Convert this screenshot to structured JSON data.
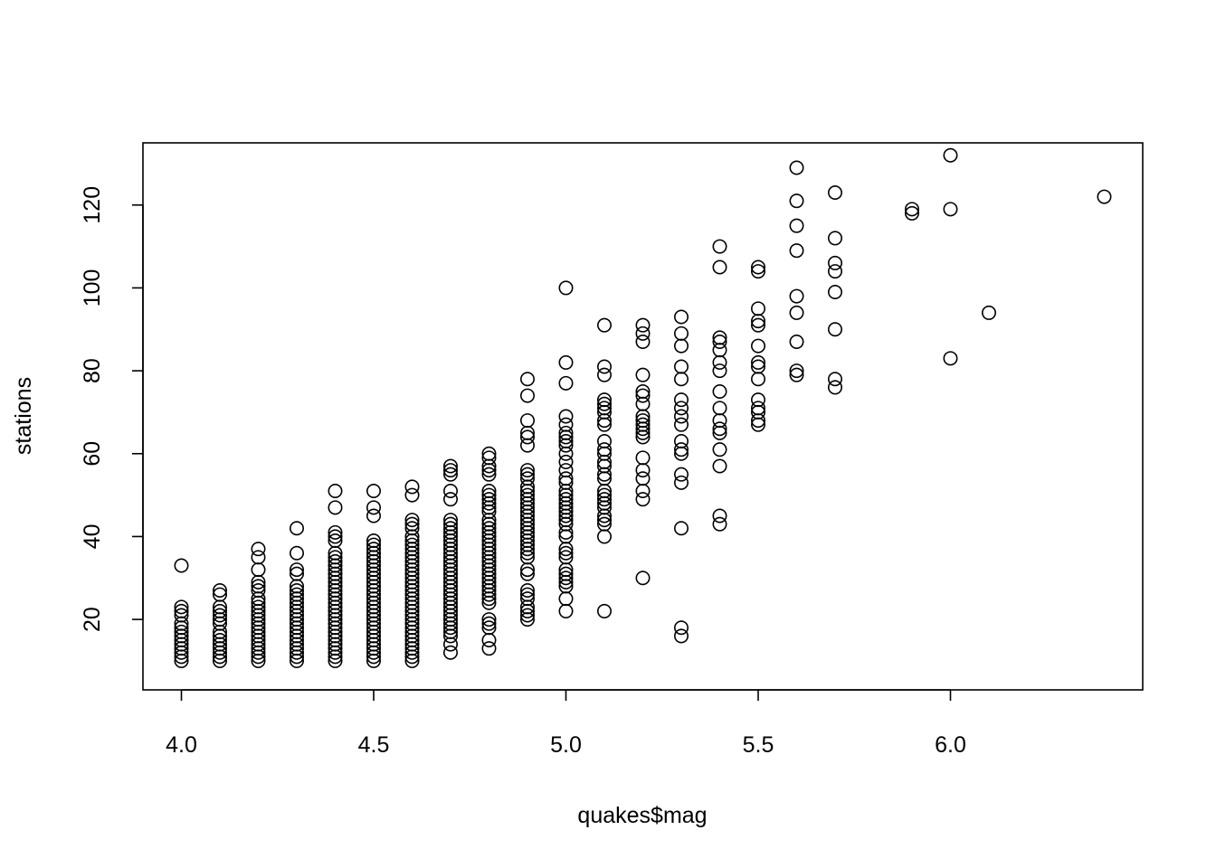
{
  "chart_data": {
    "type": "scatter",
    "title": "",
    "xlabel": "quakes$mag",
    "ylabel": "stations",
    "xlim": [
      3.9,
      6.5
    ],
    "ylim": [
      3,
      135
    ],
    "xticks": [
      4.0,
      4.5,
      5.0,
      5.5,
      6.0
    ],
    "yticks": [
      20,
      40,
      60,
      80,
      100,
      120
    ],
    "xtick_labels": [
      "4.0",
      "4.5",
      "5.0",
      "5.5",
      "6.0"
    ],
    "ytick_labels": [
      "20",
      "40",
      "60",
      "80",
      "100",
      "120"
    ],
    "grid": false,
    "marker": "open-circle",
    "color": "#000000",
    "points": [
      [
        4.0,
        33
      ],
      [
        4.0,
        23
      ],
      [
        4.0,
        22
      ],
      [
        4.0,
        21
      ],
      [
        4.0,
        19
      ],
      [
        4.0,
        18
      ],
      [
        4.0,
        17
      ],
      [
        4.0,
        16
      ],
      [
        4.0,
        15
      ],
      [
        4.0,
        14
      ],
      [
        4.0,
        13
      ],
      [
        4.0,
        12
      ],
      [
        4.0,
        11
      ],
      [
        4.0,
        10
      ],
      [
        4.1,
        27
      ],
      [
        4.1,
        26
      ],
      [
        4.1,
        23
      ],
      [
        4.1,
        22
      ],
      [
        4.1,
        21
      ],
      [
        4.1,
        20
      ],
      [
        4.1,
        19
      ],
      [
        4.1,
        17
      ],
      [
        4.1,
        16
      ],
      [
        4.1,
        15
      ],
      [
        4.1,
        14
      ],
      [
        4.1,
        13
      ],
      [
        4.1,
        12
      ],
      [
        4.1,
        11
      ],
      [
        4.1,
        10
      ],
      [
        4.2,
        37
      ],
      [
        4.2,
        35
      ],
      [
        4.2,
        32
      ],
      [
        4.2,
        29
      ],
      [
        4.2,
        28
      ],
      [
        4.2,
        27
      ],
      [
        4.2,
        25
      ],
      [
        4.2,
        24
      ],
      [
        4.2,
        23
      ],
      [
        4.2,
        22
      ],
      [
        4.2,
        21
      ],
      [
        4.2,
        20
      ],
      [
        4.2,
        19
      ],
      [
        4.2,
        18
      ],
      [
        4.2,
        17
      ],
      [
        4.2,
        16
      ],
      [
        4.2,
        15
      ],
      [
        4.2,
        14
      ],
      [
        4.2,
        13
      ],
      [
        4.2,
        12
      ],
      [
        4.2,
        11
      ],
      [
        4.2,
        10
      ],
      [
        4.3,
        42
      ],
      [
        4.3,
        36
      ],
      [
        4.3,
        32
      ],
      [
        4.3,
        31
      ],
      [
        4.3,
        28
      ],
      [
        4.3,
        27
      ],
      [
        4.3,
        26
      ],
      [
        4.3,
        25
      ],
      [
        4.3,
        24
      ],
      [
        4.3,
        23
      ],
      [
        4.3,
        22
      ],
      [
        4.3,
        21
      ],
      [
        4.3,
        20
      ],
      [
        4.3,
        19
      ],
      [
        4.3,
        18
      ],
      [
        4.3,
        17
      ],
      [
        4.3,
        16
      ],
      [
        4.3,
        15
      ],
      [
        4.3,
        14
      ],
      [
        4.3,
        13
      ],
      [
        4.3,
        12
      ],
      [
        4.3,
        11
      ],
      [
        4.3,
        10
      ],
      [
        4.4,
        51
      ],
      [
        4.4,
        47
      ],
      [
        4.4,
        41
      ],
      [
        4.4,
        40
      ],
      [
        4.4,
        39
      ],
      [
        4.4,
        36
      ],
      [
        4.4,
        35
      ],
      [
        4.4,
        34
      ],
      [
        4.4,
        33
      ],
      [
        4.4,
        32
      ],
      [
        4.4,
        31
      ],
      [
        4.4,
        30
      ],
      [
        4.4,
        29
      ],
      [
        4.4,
        28
      ],
      [
        4.4,
        27
      ],
      [
        4.4,
        26
      ],
      [
        4.4,
        25
      ],
      [
        4.4,
        24
      ],
      [
        4.4,
        23
      ],
      [
        4.4,
        22
      ],
      [
        4.4,
        21
      ],
      [
        4.4,
        20
      ],
      [
        4.4,
        19
      ],
      [
        4.4,
        18
      ],
      [
        4.4,
        17
      ],
      [
        4.4,
        16
      ],
      [
        4.4,
        15
      ],
      [
        4.4,
        14
      ],
      [
        4.4,
        13
      ],
      [
        4.4,
        12
      ],
      [
        4.4,
        11
      ],
      [
        4.4,
        10
      ],
      [
        4.5,
        51
      ],
      [
        4.5,
        47
      ],
      [
        4.5,
        45
      ],
      [
        4.5,
        39
      ],
      [
        4.5,
        38
      ],
      [
        4.5,
        37
      ],
      [
        4.5,
        36
      ],
      [
        4.5,
        35
      ],
      [
        4.5,
        34
      ],
      [
        4.5,
        33
      ],
      [
        4.5,
        32
      ],
      [
        4.5,
        31
      ],
      [
        4.5,
        30
      ],
      [
        4.5,
        29
      ],
      [
        4.5,
        28
      ],
      [
        4.5,
        27
      ],
      [
        4.5,
        26
      ],
      [
        4.5,
        25
      ],
      [
        4.5,
        24
      ],
      [
        4.5,
        23
      ],
      [
        4.5,
        22
      ],
      [
        4.5,
        21
      ],
      [
        4.5,
        20
      ],
      [
        4.5,
        19
      ],
      [
        4.5,
        18
      ],
      [
        4.5,
        17
      ],
      [
        4.5,
        16
      ],
      [
        4.5,
        15
      ],
      [
        4.5,
        14
      ],
      [
        4.5,
        13
      ],
      [
        4.5,
        12
      ],
      [
        4.5,
        11
      ],
      [
        4.5,
        10
      ],
      [
        4.6,
        52
      ],
      [
        4.6,
        50
      ],
      [
        4.6,
        44
      ],
      [
        4.6,
        43
      ],
      [
        4.6,
        42
      ],
      [
        4.6,
        40
      ],
      [
        4.6,
        39
      ],
      [
        4.6,
        38
      ],
      [
        4.6,
        37
      ],
      [
        4.6,
        36
      ],
      [
        4.6,
        35
      ],
      [
        4.6,
        34
      ],
      [
        4.6,
        33
      ],
      [
        4.6,
        32
      ],
      [
        4.6,
        31
      ],
      [
        4.6,
        30
      ],
      [
        4.6,
        29
      ],
      [
        4.6,
        28
      ],
      [
        4.6,
        27
      ],
      [
        4.6,
        26
      ],
      [
        4.6,
        25
      ],
      [
        4.6,
        24
      ],
      [
        4.6,
        23
      ],
      [
        4.6,
        22
      ],
      [
        4.6,
        21
      ],
      [
        4.6,
        20
      ],
      [
        4.6,
        19
      ],
      [
        4.6,
        18
      ],
      [
        4.6,
        17
      ],
      [
        4.6,
        16
      ],
      [
        4.6,
        15
      ],
      [
        4.6,
        14
      ],
      [
        4.6,
        13
      ],
      [
        4.6,
        12
      ],
      [
        4.6,
        11
      ],
      [
        4.6,
        10
      ],
      [
        4.7,
        57
      ],
      [
        4.7,
        56
      ],
      [
        4.7,
        55
      ],
      [
        4.7,
        51
      ],
      [
        4.7,
        49
      ],
      [
        4.7,
        44
      ],
      [
        4.7,
        43
      ],
      [
        4.7,
        42
      ],
      [
        4.7,
        41
      ],
      [
        4.7,
        40
      ],
      [
        4.7,
        39
      ],
      [
        4.7,
        38
      ],
      [
        4.7,
        37
      ],
      [
        4.7,
        36
      ],
      [
        4.7,
        35
      ],
      [
        4.7,
        34
      ],
      [
        4.7,
        33
      ],
      [
        4.7,
        32
      ],
      [
        4.7,
        31
      ],
      [
        4.7,
        30
      ],
      [
        4.7,
        29
      ],
      [
        4.7,
        28
      ],
      [
        4.7,
        27
      ],
      [
        4.7,
        26
      ],
      [
        4.7,
        25
      ],
      [
        4.7,
        24
      ],
      [
        4.7,
        23
      ],
      [
        4.7,
        22
      ],
      [
        4.7,
        21
      ],
      [
        4.7,
        20
      ],
      [
        4.7,
        19
      ],
      [
        4.7,
        18
      ],
      [
        4.7,
        17
      ],
      [
        4.7,
        16
      ],
      [
        4.7,
        14
      ],
      [
        4.7,
        12
      ],
      [
        4.8,
        60
      ],
      [
        4.8,
        59
      ],
      [
        4.8,
        57
      ],
      [
        4.8,
        56
      ],
      [
        4.8,
        55
      ],
      [
        4.8,
        51
      ],
      [
        4.8,
        50
      ],
      [
        4.8,
        49
      ],
      [
        4.8,
        48
      ],
      [
        4.8,
        47
      ],
      [
        4.8,
        46
      ],
      [
        4.8,
        44
      ],
      [
        4.8,
        43
      ],
      [
        4.8,
        42
      ],
      [
        4.8,
        41
      ],
      [
        4.8,
        40
      ],
      [
        4.8,
        39
      ],
      [
        4.8,
        38
      ],
      [
        4.8,
        37
      ],
      [
        4.8,
        36
      ],
      [
        4.8,
        35
      ],
      [
        4.8,
        34
      ],
      [
        4.8,
        33
      ],
      [
        4.8,
        32
      ],
      [
        4.8,
        31
      ],
      [
        4.8,
        30
      ],
      [
        4.8,
        29
      ],
      [
        4.8,
        28
      ],
      [
        4.8,
        27
      ],
      [
        4.8,
        26
      ],
      [
        4.8,
        25
      ],
      [
        4.8,
        24
      ],
      [
        4.8,
        20
      ],
      [
        4.8,
        19
      ],
      [
        4.8,
        18
      ],
      [
        4.8,
        15
      ],
      [
        4.8,
        13
      ],
      [
        4.9,
        78
      ],
      [
        4.9,
        74
      ],
      [
        4.9,
        68
      ],
      [
        4.9,
        65
      ],
      [
        4.9,
        64
      ],
      [
        4.9,
        62
      ],
      [
        4.9,
        56
      ],
      [
        4.9,
        55
      ],
      [
        4.9,
        54
      ],
      [
        4.9,
        52
      ],
      [
        4.9,
        51
      ],
      [
        4.9,
        50
      ],
      [
        4.9,
        49
      ],
      [
        4.9,
        48
      ],
      [
        4.9,
        47
      ],
      [
        4.9,
        46
      ],
      [
        4.9,
        45
      ],
      [
        4.9,
        44
      ],
      [
        4.9,
        43
      ],
      [
        4.9,
        42
      ],
      [
        4.9,
        41
      ],
      [
        4.9,
        40
      ],
      [
        4.9,
        39
      ],
      [
        4.9,
        38
      ],
      [
        4.9,
        37
      ],
      [
        4.9,
        36
      ],
      [
        4.9,
        35
      ],
      [
        4.9,
        32
      ],
      [
        4.9,
        31
      ],
      [
        4.9,
        27
      ],
      [
        4.9,
        26
      ],
      [
        4.9,
        25
      ],
      [
        4.9,
        23
      ],
      [
        4.9,
        22
      ],
      [
        4.9,
        21
      ],
      [
        4.9,
        20
      ],
      [
        5.0,
        100
      ],
      [
        5.0,
        82
      ],
      [
        5.0,
        77
      ],
      [
        5.0,
        69
      ],
      [
        5.0,
        67
      ],
      [
        5.0,
        65
      ],
      [
        5.0,
        64
      ],
      [
        5.0,
        63
      ],
      [
        5.0,
        62
      ],
      [
        5.0,
        60
      ],
      [
        5.0,
        58
      ],
      [
        5.0,
        56
      ],
      [
        5.0,
        54
      ],
      [
        5.0,
        53
      ],
      [
        5.0,
        51
      ],
      [
        5.0,
        50
      ],
      [
        5.0,
        49
      ],
      [
        5.0,
        48
      ],
      [
        5.0,
        47
      ],
      [
        5.0,
        46
      ],
      [
        5.0,
        45
      ],
      [
        5.0,
        44
      ],
      [
        5.0,
        43
      ],
      [
        5.0,
        41
      ],
      [
        5.0,
        40
      ],
      [
        5.0,
        37
      ],
      [
        5.0,
        36
      ],
      [
        5.0,
        35
      ],
      [
        5.0,
        32
      ],
      [
        5.0,
        31
      ],
      [
        5.0,
        30
      ],
      [
        5.0,
        29
      ],
      [
        5.0,
        28
      ],
      [
        5.0,
        25
      ],
      [
        5.0,
        22
      ],
      [
        5.1,
        91
      ],
      [
        5.1,
        81
      ],
      [
        5.1,
        79
      ],
      [
        5.1,
        73
      ],
      [
        5.1,
        72
      ],
      [
        5.1,
        71
      ],
      [
        5.1,
        70
      ],
      [
        5.1,
        68
      ],
      [
        5.1,
        67
      ],
      [
        5.1,
        63
      ],
      [
        5.1,
        61
      ],
      [
        5.1,
        60
      ],
      [
        5.1,
        58
      ],
      [
        5.1,
        57
      ],
      [
        5.1,
        55
      ],
      [
        5.1,
        54
      ],
      [
        5.1,
        51
      ],
      [
        5.1,
        50
      ],
      [
        5.1,
        49
      ],
      [
        5.1,
        48
      ],
      [
        5.1,
        47
      ],
      [
        5.1,
        45
      ],
      [
        5.1,
        44
      ],
      [
        5.1,
        43
      ],
      [
        5.1,
        40
      ],
      [
        5.1,
        22
      ],
      [
        5.2,
        91
      ],
      [
        5.2,
        89
      ],
      [
        5.2,
        87
      ],
      [
        5.2,
        79
      ],
      [
        5.2,
        75
      ],
      [
        5.2,
        74
      ],
      [
        5.2,
        72
      ],
      [
        5.2,
        69
      ],
      [
        5.2,
        68
      ],
      [
        5.2,
        67
      ],
      [
        5.2,
        66
      ],
      [
        5.2,
        65
      ],
      [
        5.2,
        64
      ],
      [
        5.2,
        59
      ],
      [
        5.2,
        56
      ],
      [
        5.2,
        54
      ],
      [
        5.2,
        51
      ],
      [
        5.2,
        49
      ],
      [
        5.2,
        30
      ],
      [
        5.3,
        93
      ],
      [
        5.3,
        89
      ],
      [
        5.3,
        86
      ],
      [
        5.3,
        81
      ],
      [
        5.3,
        78
      ],
      [
        5.3,
        73
      ],
      [
        5.3,
        71
      ],
      [
        5.3,
        69
      ],
      [
        5.3,
        67
      ],
      [
        5.3,
        63
      ],
      [
        5.3,
        61
      ],
      [
        5.3,
        60
      ],
      [
        5.3,
        55
      ],
      [
        5.3,
        53
      ],
      [
        5.3,
        42
      ],
      [
        5.3,
        18
      ],
      [
        5.3,
        16
      ],
      [
        5.4,
        110
      ],
      [
        5.4,
        105
      ],
      [
        5.4,
        88
      ],
      [
        5.4,
        87
      ],
      [
        5.4,
        85
      ],
      [
        5.4,
        82
      ],
      [
        5.4,
        80
      ],
      [
        5.4,
        75
      ],
      [
        5.4,
        71
      ],
      [
        5.4,
        68
      ],
      [
        5.4,
        66
      ],
      [
        5.4,
        65
      ],
      [
        5.4,
        61
      ],
      [
        5.4,
        57
      ],
      [
        5.4,
        45
      ],
      [
        5.4,
        43
      ],
      [
        5.5,
        105
      ],
      [
        5.5,
        104
      ],
      [
        5.5,
        95
      ],
      [
        5.5,
        92
      ],
      [
        5.5,
        91
      ],
      [
        5.5,
        86
      ],
      [
        5.5,
        82
      ],
      [
        5.5,
        81
      ],
      [
        5.5,
        78
      ],
      [
        5.5,
        73
      ],
      [
        5.5,
        71
      ],
      [
        5.5,
        70
      ],
      [
        5.5,
        68
      ],
      [
        5.5,
        67
      ],
      [
        5.6,
        129
      ],
      [
        5.6,
        121
      ],
      [
        5.6,
        115
      ],
      [
        5.6,
        109
      ],
      [
        5.6,
        98
      ],
      [
        5.6,
        94
      ],
      [
        5.6,
        87
      ],
      [
        5.6,
        80
      ],
      [
        5.6,
        79
      ],
      [
        5.7,
        123
      ],
      [
        5.7,
        112
      ],
      [
        5.7,
        106
      ],
      [
        5.7,
        104
      ],
      [
        5.7,
        99
      ],
      [
        5.7,
        90
      ],
      [
        5.7,
        78
      ],
      [
        5.7,
        76
      ],
      [
        5.9,
        119
      ],
      [
        5.9,
        118
      ],
      [
        6.0,
        132
      ],
      [
        6.0,
        119
      ],
      [
        6.0,
        83
      ],
      [
        6.1,
        94
      ],
      [
        6.4,
        122
      ]
    ]
  }
}
